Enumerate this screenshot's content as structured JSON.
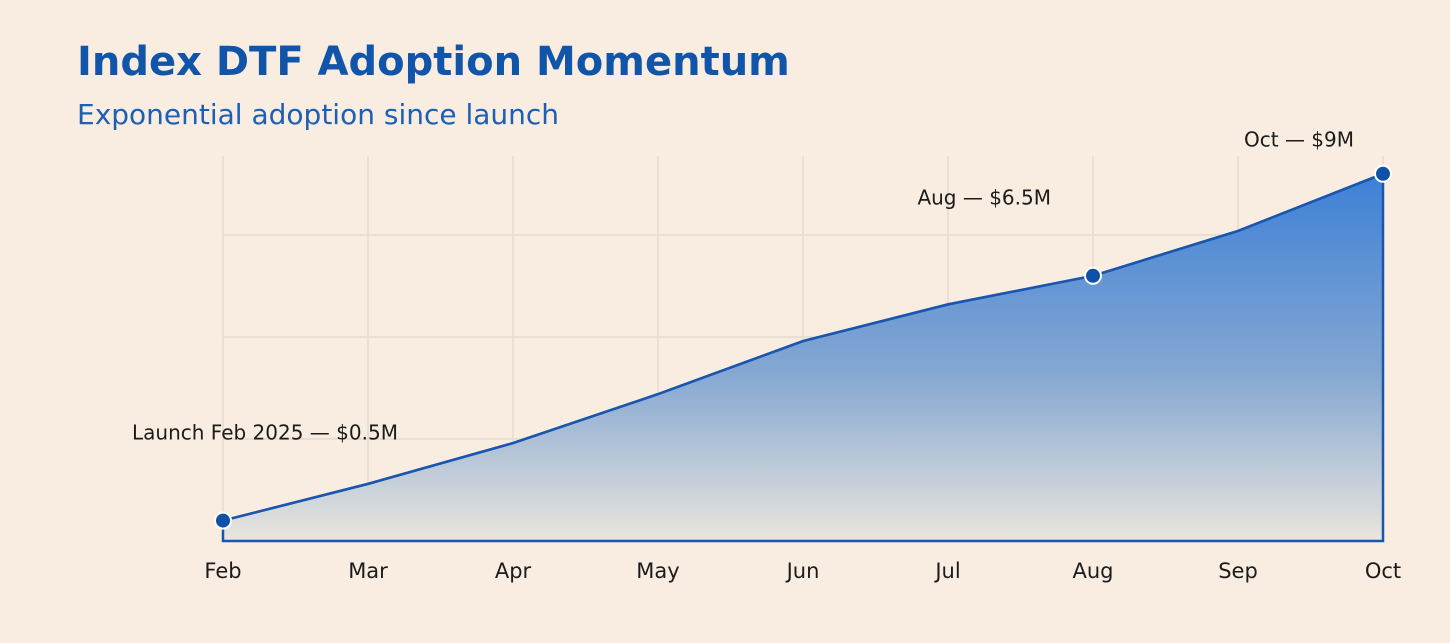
{
  "chart_data": {
    "type": "area",
    "title": "Index DTF Adoption Momentum",
    "subtitle": "Exponential adoption since launch",
    "categories": [
      "Feb",
      "Mar",
      "Apr",
      "May",
      "Jun",
      "Jul",
      "Aug",
      "Sep",
      "Oct"
    ],
    "values": [
      0.5,
      1.4,
      2.4,
      3.6,
      4.9,
      5.8,
      6.5,
      7.6,
      9
    ],
    "annotations": [
      "Launch Feb 2025 — $0.5M",
      "Aug — $6.5M",
      "Oct — $9M"
    ],
    "color": "#1a56b0",
    "ylim": [
      0,
      10
    ],
    "yticks": [
      2.5,
      5,
      7.5
    ],
    "grid": true
  }
}
